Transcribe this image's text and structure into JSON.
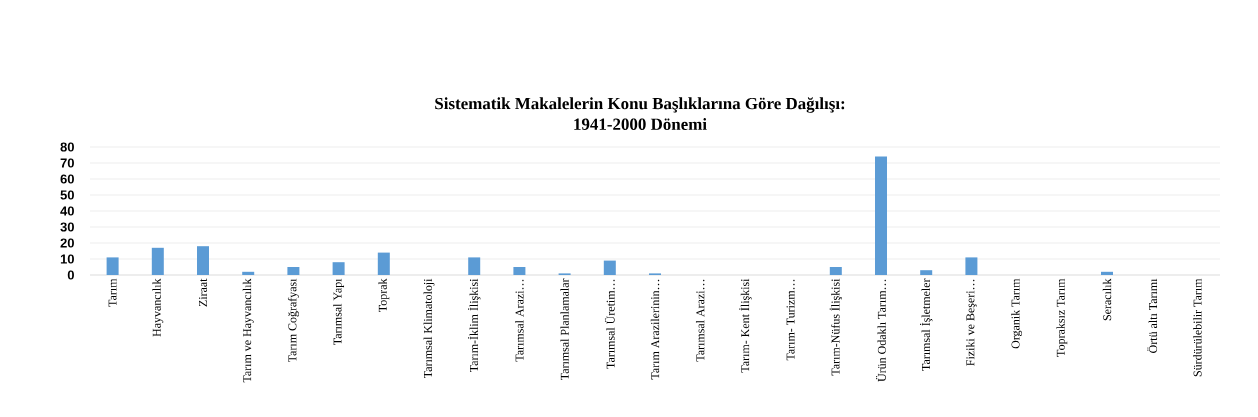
{
  "chart_data": {
    "type": "bar",
    "title": "Sistematik Makalelerin Konu Başlıklarına Göre Dağılışı:",
    "subtitle": "1941-2000 Dönemi",
    "categories": [
      "Tarım",
      "Hayvancılık",
      "Ziraat",
      "Tarım ve Hayvancılık",
      "Tarım Coğrafyası",
      "Tarımsal Yapı",
      "Toprak",
      "Tarımsal Klimatoloji",
      "Tarım-İklim İlişkisi",
      "Tarımsal Arazi…",
      "Tarımsal Planlamalar",
      "Tarımsal Üretim…",
      "Tarım Arazilerinin…",
      "Tarımsal Arazi…",
      "Tarım- Kent İlişkisi",
      "Tarım- Turizm…",
      "Tarım-Nüfus İlişkisi",
      "Ürün Odaklı Tarım…",
      "Tarımsal İşletmeler",
      "Fiziki ve Beşeri…",
      "Organik Tarım",
      "Topraksız Tarım",
      "Seracılık",
      "Örtü altı Tarımı",
      "Sürdürülebilir Tarım"
    ],
    "values": [
      11,
      17,
      18,
      2,
      5,
      8,
      14,
      0,
      11,
      5,
      1,
      9,
      1,
      0,
      0,
      0,
      5,
      74,
      3,
      11,
      0,
      0,
      2,
      0,
      0
    ],
    "color": "#5b9bd5",
    "ylim": [
      0,
      80
    ],
    "yticks": [
      0,
      10,
      20,
      30,
      40,
      50,
      60,
      70,
      80
    ],
    "grid": "y"
  }
}
